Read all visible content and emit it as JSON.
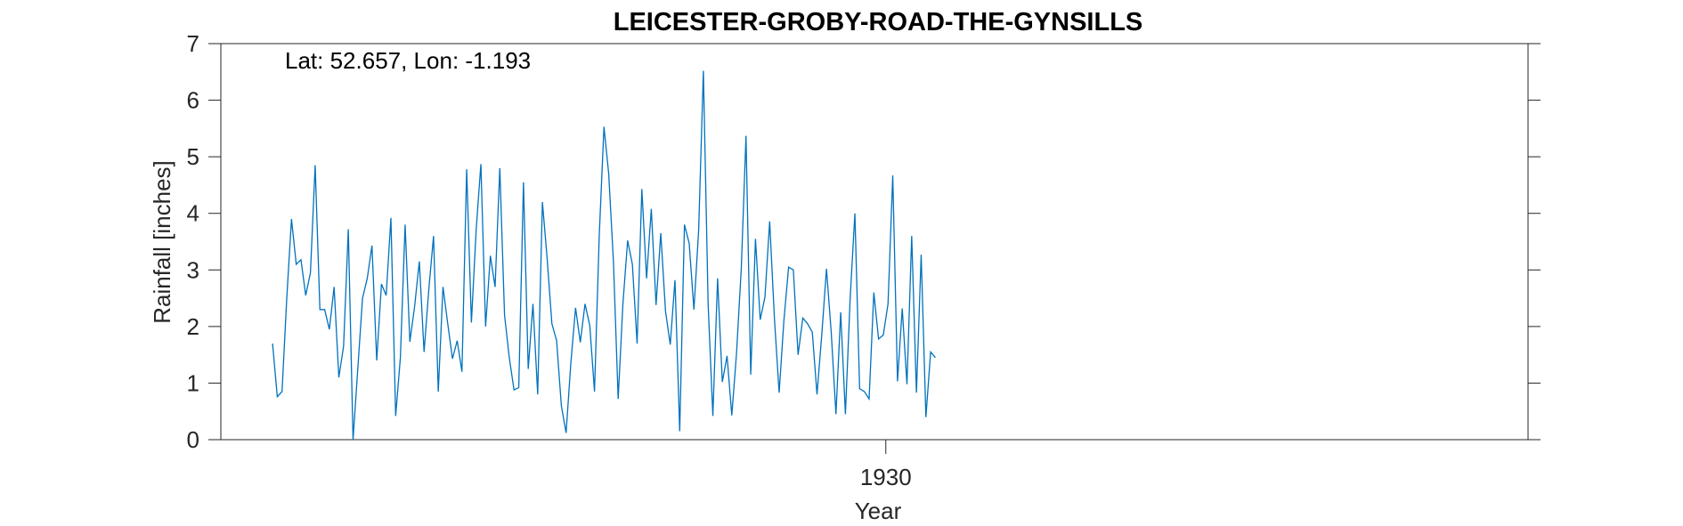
{
  "chart_data": {
    "type": "line",
    "title": "LEICESTER-GROBY-ROAD-THE-GYNSILLS",
    "annotation": "Lat: 52.657, Lon: -1.193",
    "xlabel": "Year",
    "ylabel": "Rainfall [inches]",
    "xlim": [
      1918.3,
      1941.3
    ],
    "ylim": [
      0,
      7
    ],
    "yticks": [
      0,
      1,
      2,
      3,
      4,
      5,
      6,
      7
    ],
    "xticks": [
      1930
    ],
    "xtick_labels": [
      "1930"
    ],
    "grid": false,
    "line_color": "#0072BD",
    "x_start": 1919.21,
    "x_step": 0.0833,
    "series": [
      {
        "values": [
          1.7,
          0.76,
          0.85,
          2.5,
          3.9,
          3.1,
          3.18,
          2.55,
          2.95,
          4.85,
          2.3,
          2.3,
          1.95,
          2.7,
          1.1,
          1.65,
          3.72,
          0.0,
          1.25,
          2.5,
          2.85,
          3.43,
          1.4,
          2.75,
          2.55,
          3.92,
          0.42,
          1.45,
          3.8,
          1.73,
          2.35,
          3.15,
          1.55,
          2.65,
          3.6,
          0.85,
          2.7,
          2.05,
          1.43,
          1.75,
          1.2,
          4.78,
          2.07,
          3.7,
          4.87,
          2.0,
          3.25,
          2.7,
          4.8,
          2.2,
          1.45,
          0.88,
          0.92,
          4.55,
          1.25,
          2.4,
          0.8,
          4.2,
          3.2,
          2.05,
          1.75,
          0.6,
          0.12,
          1.35,
          2.33,
          1.72,
          2.4,
          2.02,
          0.85,
          3.6,
          5.53,
          4.7,
          3.15,
          0.72,
          2.4,
          3.52,
          3.1,
          1.7,
          4.43,
          2.85,
          4.08,
          2.38,
          3.65,
          2.27,
          1.68,
          2.82,
          0.15,
          3.8,
          3.47,
          2.3,
          3.7,
          6.52,
          2.4,
          0.42,
          2.85,
          1.02,
          1.48,
          0.43,
          1.53,
          3.02,
          5.37,
          1.15,
          3.55,
          2.12,
          2.52,
          3.86,
          2.15,
          0.83,
          2.1,
          3.05,
          3.0,
          1.5,
          2.15,
          2.05,
          1.9,
          0.8,
          1.85,
          3.02,
          1.9,
          0.45,
          2.25,
          0.45,
          2.5,
          4.0,
          0.9,
          0.85,
          0.72,
          2.6,
          1.78,
          1.85,
          2.4,
          4.67,
          1.03,
          2.32,
          0.98,
          3.6,
          0.83,
          3.27,
          0.4,
          1.55,
          1.45
        ]
      }
    ]
  }
}
